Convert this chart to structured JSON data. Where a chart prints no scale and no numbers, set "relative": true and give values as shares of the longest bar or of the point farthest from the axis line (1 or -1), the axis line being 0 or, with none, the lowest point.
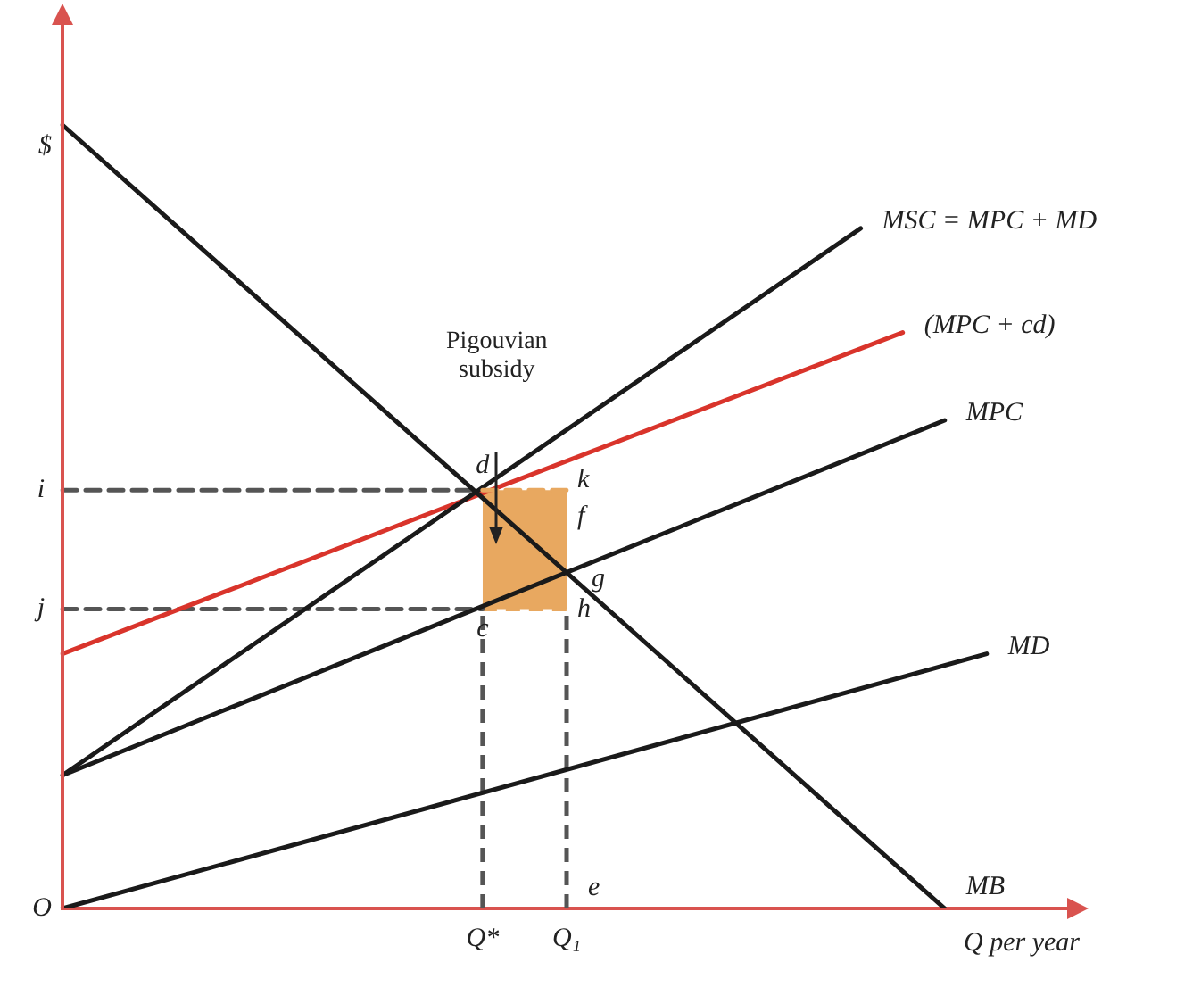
{
  "chart_data": {
    "type": "line",
    "relative": true,
    "xlabel": "Q per year",
    "ylabel": "$",
    "legend": false,
    "marker": "none",
    "categories": [
      null,
      null,
      null,
      null,
      null,
      null,
      null,
      null,
      null,
      null,
      "Q*",
      null,
      "Q₁",
      null,
      null,
      null,
      null,
      null,
      null,
      null,
      null,
      null,
      null,
      null,
      null
    ],
    "series": [
      {
        "color": "#e8a860",
        "line_style": "dashed",
        "values": [
          null,
          null,
          null,
          null,
          null,
          null,
          null,
          null,
          null,
          null,
          0.534,
          0.534,
          0.534,
          null,
          null,
          null,
          null,
          null,
          null,
          null,
          null,
          null,
          null,
          null,
          null
        ],
        "lower": [
          null,
          null,
          null,
          null,
          null,
          null,
          null,
          null,
          null,
          null,
          0.382,
          0.382,
          0.382,
          null,
          null,
          null,
          null,
          null,
          null,
          null,
          null,
          null,
          null,
          null,
          null
        ],
        "upper": [
          null,
          null,
          null,
          null,
          null,
          null,
          null,
          null,
          null,
          null,
          0.534,
          0.534,
          0.534,
          null,
          null,
          null,
          null,
          null,
          null,
          null,
          null,
          null,
          null,
          null,
          null
        ]
      },
      {
        "name": "MB",
        "color": "#1a1a1a",
        "values": [
          1,
          null,
          null,
          null,
          null,
          null,
          null,
          null,
          null,
          null,
          null,
          null,
          null,
          null,
          null,
          null,
          null,
          null,
          null,
          null,
          null,
          0,
          null,
          null,
          null
        ]
      },
      {
        "name": "MSC = MPC + MD",
        "color": "#1a1a1a",
        "values": [
          0.17,
          null,
          null,
          null,
          null,
          null,
          null,
          null,
          null,
          null,
          null,
          null,
          null,
          null,
          null,
          null,
          null,
          null,
          null,
          0.868,
          null,
          null,
          null,
          null,
          null
        ]
      },
      {
        "name": "(MPC + cd)",
        "color": "#d9342b",
        "values": [
          0.325,
          null,
          null,
          null,
          null,
          null,
          null,
          null,
          null,
          null,
          null,
          null,
          null,
          null,
          null,
          null,
          null,
          null,
          null,
          null,
          0.735,
          null,
          null,
          null,
          null
        ]
      },
      {
        "name": "MPC",
        "color": "#1a1a1a",
        "values": [
          0.17,
          null,
          null,
          null,
          null,
          null,
          null,
          null,
          null,
          null,
          null,
          null,
          null,
          null,
          null,
          null,
          null,
          null,
          null,
          null,
          null,
          0.623,
          null,
          null,
          null
        ]
      },
      {
        "name": "MD",
        "color": "#1a1a1a",
        "values": [
          0,
          null,
          null,
          null,
          null,
          null,
          null,
          null,
          null,
          null,
          null,
          null,
          null,
          null,
          null,
          null,
          null,
          null,
          null,
          null,
          null,
          null,
          0.325,
          null,
          null
        ]
      },
      {
        "color": "#555555",
        "line_style": "dashed",
        "values": [
          0.534,
          0.534,
          0.534,
          0.534,
          0.534,
          0.534,
          0.534,
          0.534,
          0.534,
          0.534,
          0.534,
          null,
          null,
          null,
          null,
          null,
          null,
          null,
          null,
          null,
          null,
          null,
          null,
          null,
          null
        ]
      },
      {
        "color": "#555555",
        "line_style": "dashed",
        "values": [
          0.382,
          0.382,
          0.382,
          0.382,
          0.382,
          0.382,
          0.382,
          0.382,
          0.382,
          0.382,
          0.382,
          null,
          null,
          null,
          null,
          null,
          null,
          null,
          null,
          null,
          null,
          null,
          null,
          null,
          null
        ]
      }
    ],
    "annotations": [
      "Pigouvian subsidy",
      {
        "text": "d",
        "x": "Q*",
        "y": 0.534
      },
      {
        "text": "k",
        "x": "Q₁",
        "y": 0.534
      },
      {
        "text": "f",
        "x": "Q₁",
        "y": 0.492
      },
      {
        "text": "g",
        "x": "Q₁",
        "y": 0.435
      },
      {
        "text": "c",
        "x": "Q*",
        "y": 0.382
      },
      {
        "text": "h",
        "x": "Q₁",
        "y": 0.382
      },
      "e",
      "i",
      "j",
      "O"
    ]
  }
}
